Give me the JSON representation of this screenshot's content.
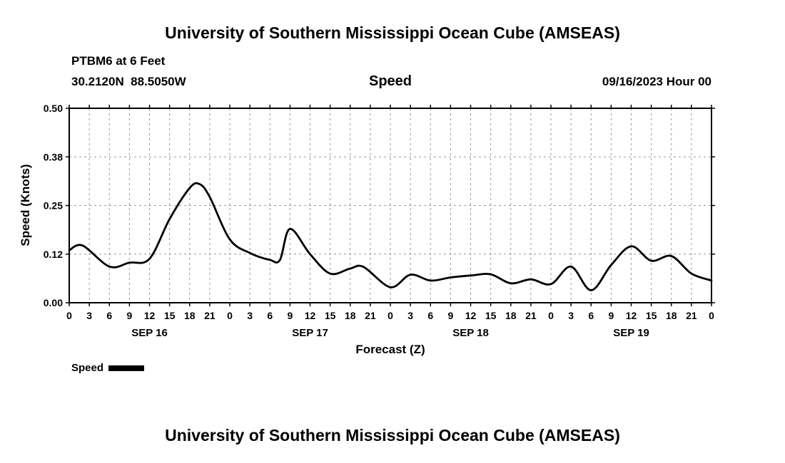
{
  "page": {
    "top_title": "University of Southern Mississippi Ocean Cube (AMSEAS)",
    "bottom_title": "University of Southern Mississippi Ocean Cube (AMSEAS)"
  },
  "header": {
    "station": "PTBM6 at 6 Feet",
    "coords": "30.2120N  88.5050W",
    "plot_title": "Speed",
    "run_time": "09/16/2023 Hour 00"
  },
  "legend": {
    "label": "Speed",
    "line_color": "#000000"
  },
  "chart_data": {
    "type": "line",
    "title": "Speed",
    "xlabel": "Forecast (Z)",
    "ylabel": "Speed (Knots)",
    "ylim": [
      0.0,
      0.5
    ],
    "x_range_hours": [
      0,
      96
    ],
    "x_tick_step_hours": 3,
    "grid": true,
    "legend_position": "bottom-left",
    "line_color": "#000000",
    "grid_color": "#999999",
    "y_ticks": [
      {
        "value": 0.0,
        "label": "0.00"
      },
      {
        "value": 0.125,
        "label": "0.12"
      },
      {
        "value": 0.25,
        "label": "0.25"
      },
      {
        "value": 0.375,
        "label": "0.38"
      },
      {
        "value": 0.5,
        "label": "0.50"
      }
    ],
    "x_tick_labels": [
      "0",
      "3",
      "6",
      "9",
      "12",
      "15",
      "18",
      "21",
      "0",
      "3",
      "6",
      "9",
      "12",
      "15",
      "18",
      "21",
      "0",
      "3",
      "6",
      "9",
      "12",
      "15",
      "18",
      "21",
      "0",
      "3",
      "6",
      "9",
      "12",
      "15",
      "18",
      "21",
      "0"
    ],
    "day_labels": [
      {
        "label": "SEP 16",
        "hour": 12
      },
      {
        "label": "SEP 17",
        "hour": 36
      },
      {
        "label": "SEP 18",
        "hour": 60
      },
      {
        "label": "SEP 19",
        "hour": 84
      }
    ],
    "series": [
      {
        "name": "Speed",
        "color": "#000000",
        "x_hours": [
          0,
          2,
          6,
          9,
          12,
          15,
          18,
          19.5,
          21,
          24,
          27,
          30,
          31.5,
          33,
          36,
          39,
          42,
          44,
          48,
          51,
          54,
          57,
          60,
          63,
          66,
          69,
          72,
          75,
          78,
          81,
          84,
          87,
          90,
          93,
          96
        ],
        "values": [
          0.135,
          0.147,
          0.093,
          0.103,
          0.113,
          0.215,
          0.295,
          0.305,
          0.272,
          0.163,
          0.128,
          0.11,
          0.11,
          0.19,
          0.125,
          0.075,
          0.088,
          0.092,
          0.04,
          0.072,
          0.057,
          0.065,
          0.07,
          0.073,
          0.05,
          0.06,
          0.048,
          0.093,
          0.032,
          0.097,
          0.145,
          0.108,
          0.12,
          0.075,
          0.057
        ]
      }
    ]
  }
}
